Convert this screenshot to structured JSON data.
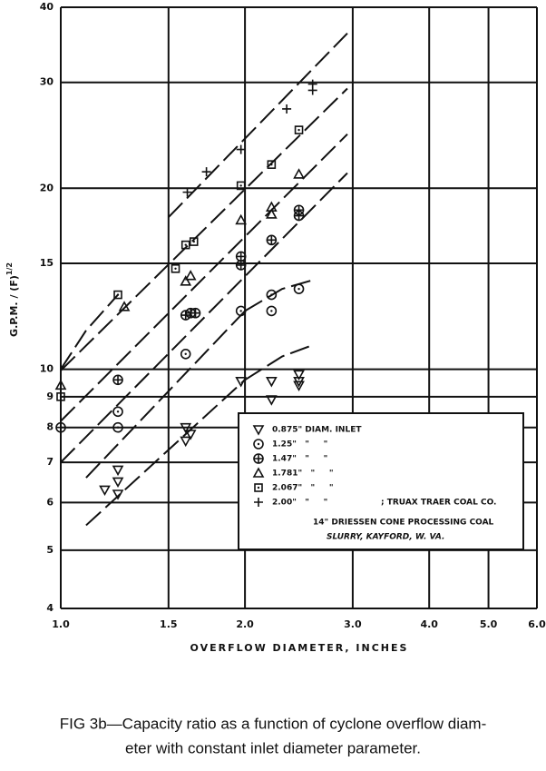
{
  "chart_data": {
    "type": "scatter",
    "xlabel": "OVERFLOW DIAMETER, INCHES",
    "ylabel": "G.P.M. / (F)",
    "ylabel_sup": "1/2",
    "xscale": "log",
    "yscale": "log",
    "grid": true,
    "xlim": [
      1.0,
      6.0
    ],
    "ylim": [
      4,
      40
    ],
    "xticks": [
      {
        "value": 1.0,
        "label": "1.0"
      },
      1.5,
      {
        "value": 2.0,
        "label": "2.0"
      },
      {
        "value": 3.0,
        "label": "3.0"
      },
      {
        "value": 4.0,
        "label": "4.0"
      },
      {
        "value": 5.0,
        "label": "5.0"
      },
      {
        "value": 6.0,
        "label": "6.0"
      }
    ],
    "yticks": [
      4,
      5,
      6,
      7,
      8,
      9,
      10,
      15,
      20,
      30,
      40
    ],
    "color": "#111111",
    "series": [
      {
        "name": "0.875\" DIAM. INLET",
        "marker": "triangle-down",
        "x": [
          1.18,
          1.24,
          1.24,
          1.24,
          1.6,
          1.6,
          1.63,
          1.97,
          2.21,
          2.21,
          2.45,
          2.45,
          2.45
        ],
        "values": [
          6.3,
          6.8,
          6.5,
          6.2,
          8.0,
          7.6,
          7.8,
          9.55,
          9.55,
          8.9,
          9.8,
          9.55,
          9.4
        ]
      },
      {
        "name": "1.25\"   \"     \"",
        "marker": "circle-dot",
        "x": [
          1.24,
          1.24,
          1.6,
          1.97,
          2.21,
          2.21,
          2.45
        ],
        "values": [
          8.5,
          8.0,
          10.6,
          12.5,
          13.3,
          12.5,
          13.6
        ]
      },
      {
        "name": "1.47\"   \"     \"",
        "marker": "circle-plus",
        "x": [
          1.0,
          1.24,
          1.6,
          1.63,
          1.66,
          1.97,
          1.97,
          2.21,
          2.45,
          2.45
        ],
        "values": [
          8.0,
          9.6,
          12.3,
          12.4,
          12.4,
          15.4,
          14.9,
          16.4,
          18.4,
          18.0
        ]
      },
      {
        "name": "1.781\"   \"     \"",
        "marker": "triangle",
        "x": [
          1.0,
          1.27,
          1.6,
          1.63,
          1.97,
          2.21,
          2.21,
          2.45
        ],
        "values": [
          9.4,
          12.7,
          14.0,
          14.3,
          17.7,
          18.6,
          18.1,
          21.1
        ]
      },
      {
        "name": "2.067\"   \"     \"",
        "marker": "square-dot",
        "x": [
          1.0,
          1.24,
          1.54,
          1.6,
          1.65,
          1.97,
          2.21,
          2.45
        ],
        "values": [
          9.0,
          13.3,
          14.7,
          16.1,
          16.3,
          20.2,
          21.9,
          25.0
        ]
      },
      {
        "name": "2.00\"   \"     \"",
        "marker": "plus",
        "x": [
          1.61,
          1.73,
          1.97,
          2.34,
          2.58,
          2.58
        ],
        "values": [
          19.7,
          21.3,
          23.2,
          27.1,
          29.8,
          29.1
        ]
      }
    ],
    "fit_lines": [
      {
        "x": [
          1.5,
          2.94
        ],
        "values": [
          17.9,
          36.2
        ]
      },
      {
        "x": [
          1.0,
          2.94
        ],
        "values": [
          9.95,
          29.3
        ]
      },
      {
        "x": [
          1.0,
          2.94
        ],
        "values": [
          8.2,
          24.6
        ]
      },
      {
        "x": [
          1.0,
          2.94
        ],
        "values": [
          7.0,
          21.2
        ]
      },
      {
        "x": [
          1.1,
          2.0
        ],
        "values": [
          6.6,
          12.5
        ]
      },
      {
        "x": [
          1.1,
          2.0
        ],
        "values": [
          5.5,
          9.6
        ]
      },
      {
        "x": [
          2.0,
          2.3,
          2.6
        ],
        "values": [
          12.5,
          13.6,
          14.1
        ]
      },
      {
        "x": [
          2.0,
          2.3,
          2.6
        ],
        "values": [
          9.6,
          10.5,
          11.0
        ]
      },
      {
        "x": [
          1.0,
          1.1,
          1.24
        ],
        "values": [
          10.0,
          11.6,
          13.3
        ]
      }
    ],
    "legend_notes": [
      "; TRUAX TRAER COAL CO.",
      "14\" DRIESSEN CONE PROCESSING COAL",
      "SLURRY, KAYFORD, W. VA."
    ],
    "caption": [
      "FIG 3b—Capacity ratio as a function of cyclone overflow diam-",
      "eter with constant inlet diameter parameter."
    ]
  }
}
